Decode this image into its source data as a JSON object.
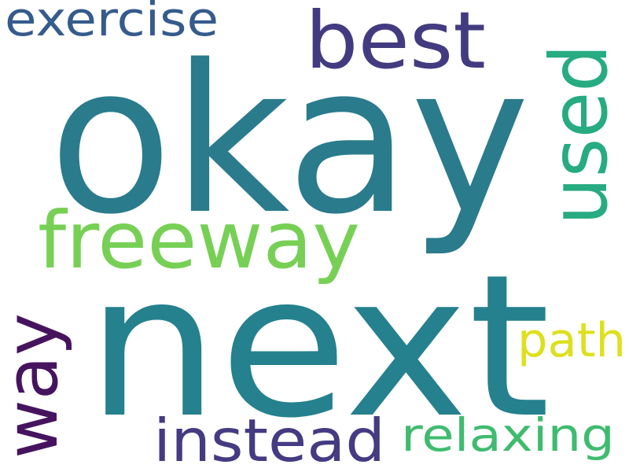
{
  "words": {
    "okay": {
      "text": "okay",
      "color": "#2a7b8c"
    },
    "next": {
      "text": "next",
      "color": "#24818d"
    },
    "best": {
      "text": "best",
      "color": "#433b80"
    },
    "exercise": {
      "text": "exercise",
      "color": "#355b8c"
    },
    "used": {
      "text": "used",
      "color": "#27ab80"
    },
    "freeway": {
      "text": "freeway",
      "color": "#77d055"
    },
    "way": {
      "text": "way",
      "color": "#46145f"
    },
    "path": {
      "text": "path",
      "color": "#dde01e"
    },
    "instead": {
      "text": "instead",
      "color": "#443b82"
    },
    "relaxing": {
      "text": "relaxing",
      "color": "#3fbb6f"
    }
  }
}
